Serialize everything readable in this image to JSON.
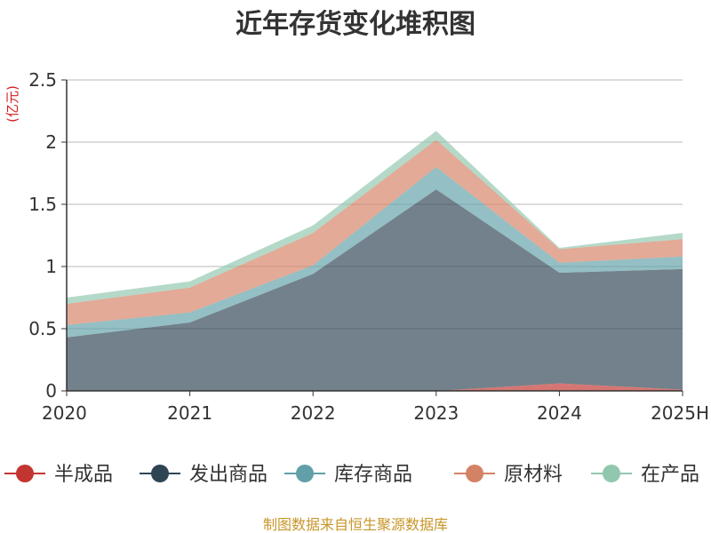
{
  "chart_data": {
    "type": "area",
    "stacked": true,
    "title": "近年存货变化堆积图",
    "unit_label": "(亿元)",
    "categories": [
      "2020",
      "2021",
      "2022",
      "2023",
      "2024",
      "2025H"
    ],
    "ylim": [
      0,
      2.5
    ],
    "yticks": [
      "0",
      "0.5",
      "1",
      "1.5",
      "2",
      "2.5"
    ],
    "grid": true,
    "legend_position": "bottom",
    "series": [
      {
        "name": "半成品",
        "color": "#c23531",
        "values": [
          0,
          0,
          0,
          0,
          0.06,
          0.01
        ]
      },
      {
        "name": "发出商品",
        "color": "#2f4554",
        "values": [
          0.43,
          0.55,
          0.94,
          1.62,
          0.89,
          0.97
        ]
      },
      {
        "name": "库存商品",
        "color": "#61a0a8",
        "values": [
          0.1,
          0.08,
          0.07,
          0.18,
          0.08,
          0.1
        ]
      },
      {
        "name": "原材料",
        "color": "#d48265",
        "values": [
          0.17,
          0.2,
          0.26,
          0.22,
          0.11,
          0.14
        ]
      },
      {
        "name": "在产品",
        "color": "#91c7ae",
        "values": [
          0.05,
          0.05,
          0.06,
          0.07,
          0.01,
          0.05
        ]
      }
    ]
  },
  "footer": {
    "source": "制图数据来自恒生聚源数据库"
  }
}
